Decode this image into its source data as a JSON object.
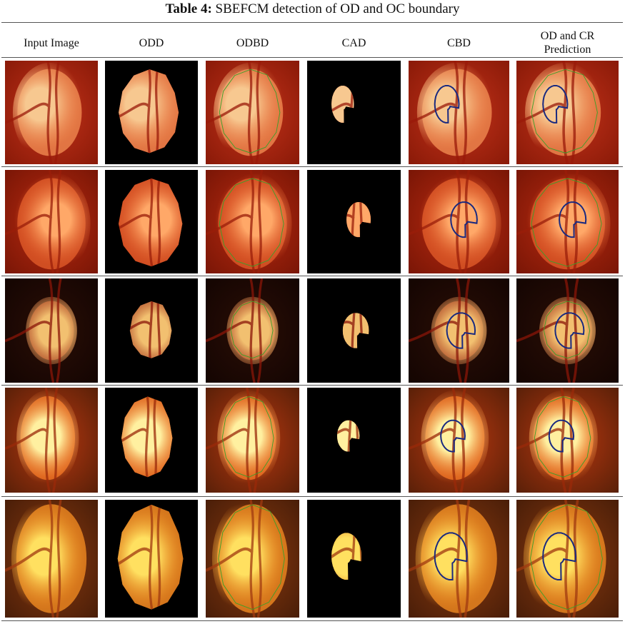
{
  "table": {
    "caption_label": "Table 4:",
    "caption_text": "SBEFCM detection of OD and OC boundary",
    "columns": [
      "Input Image",
      "ODD",
      "ODBD",
      "CAD",
      "CBD",
      "OD and CR Prediction"
    ]
  }
}
